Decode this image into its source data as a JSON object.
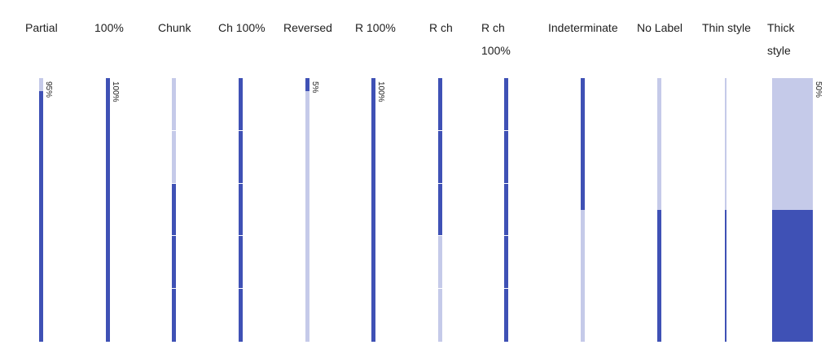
{
  "colors": {
    "fill": "#3F51B5",
    "track": "#C5CAE9",
    "text": "#212121"
  },
  "columns": [
    {
      "id": "partial",
      "label": "Partial",
      "value": 0.95,
      "value_label": "95%",
      "chunked": false,
      "reversed": false,
      "style": "normal"
    },
    {
      "id": "full",
      "label": "100%",
      "value": 1.0,
      "value_label": "100%",
      "chunked": false,
      "reversed": false,
      "style": "normal"
    },
    {
      "id": "chunk",
      "label": "Chunk",
      "value": 0.6,
      "chunked": true,
      "chunks": 5,
      "reversed": false,
      "style": "normal"
    },
    {
      "id": "chunk-full",
      "label": "Ch 100%",
      "value": 1.0,
      "chunked": true,
      "chunks": 5,
      "reversed": false,
      "style": "normal"
    },
    {
      "id": "reversed",
      "label": "Reversed",
      "value": 0.05,
      "value_label": "5%",
      "chunked": false,
      "reversed": true,
      "style": "normal"
    },
    {
      "id": "reversed-full",
      "label": "R 100%",
      "value": 1.0,
      "value_label": "100%",
      "chunked": false,
      "reversed": true,
      "style": "normal"
    },
    {
      "id": "reversed-chunk",
      "label": "R ch",
      "value": 0.6,
      "chunked": true,
      "chunks": 5,
      "reversed": true,
      "style": "normal"
    },
    {
      "id": "reversed-chunk-full",
      "label": "R ch 100%",
      "value": 1.0,
      "chunked": true,
      "chunks": 5,
      "reversed": true,
      "style": "normal"
    },
    {
      "id": "indeterminate",
      "label": "Indeterminate",
      "value": 0.5,
      "chunked": false,
      "reversed": true,
      "style": "normal"
    },
    {
      "id": "no-label",
      "label": "No Label",
      "value": 0.5,
      "chunked": false,
      "reversed": false,
      "style": "normal"
    },
    {
      "id": "thin",
      "label": "Thin style",
      "value": 0.5,
      "chunked": false,
      "reversed": false,
      "style": "thin"
    },
    {
      "id": "thick",
      "label": "Thick style",
      "value": 0.5,
      "value_label": "50%",
      "chunked": false,
      "reversed": false,
      "style": "thick"
    }
  ]
}
